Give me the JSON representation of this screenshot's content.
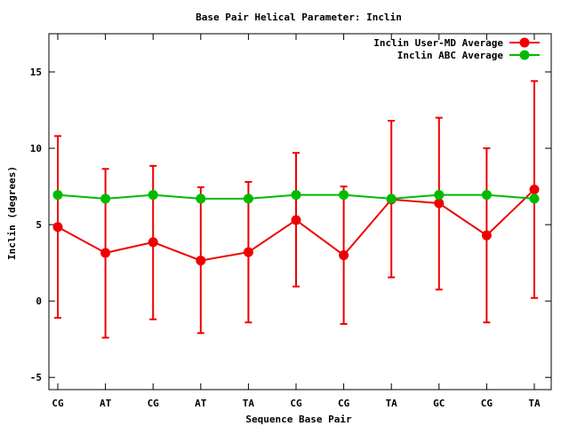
{
  "chart_data": {
    "type": "line",
    "title": "Base Pair Helical Parameter: Inclin",
    "xlabel": "Sequence Base Pair",
    "ylabel": "Inclin (degrees)",
    "categories": [
      "CG",
      "AT",
      "CG",
      "AT",
      "TA",
      "CG",
      "CG",
      "TA",
      "GC",
      "CG",
      "TA"
    ],
    "ylim": [
      -5.8,
      17.5
    ],
    "yticks": [
      -5,
      0,
      5,
      10,
      15
    ],
    "legend_position": "top-right",
    "grid": false,
    "series": [
      {
        "name": "Inclin User-MD Average",
        "color": "#ee0000",
        "values": [
          4.85,
          3.15,
          3.85,
          2.65,
          3.2,
          5.3,
          3.0,
          6.65,
          6.4,
          4.3,
          7.3
        ],
        "error_low": [
          -1.1,
          -2.4,
          -1.2,
          -2.1,
          -1.4,
          0.95,
          -1.5,
          1.55,
          0.75,
          -1.4,
          0.2
        ],
        "error_high": [
          10.8,
          8.65,
          8.85,
          7.45,
          7.8,
          9.7,
          7.5,
          11.8,
          12.0,
          10.0,
          14.4
        ]
      },
      {
        "name": "Inclin ABC Average",
        "color": "#00bb00",
        "values": [
          6.95,
          6.7,
          6.95,
          6.7,
          6.7,
          6.95,
          6.95,
          6.7,
          6.95,
          6.95,
          6.7
        ]
      }
    ]
  }
}
